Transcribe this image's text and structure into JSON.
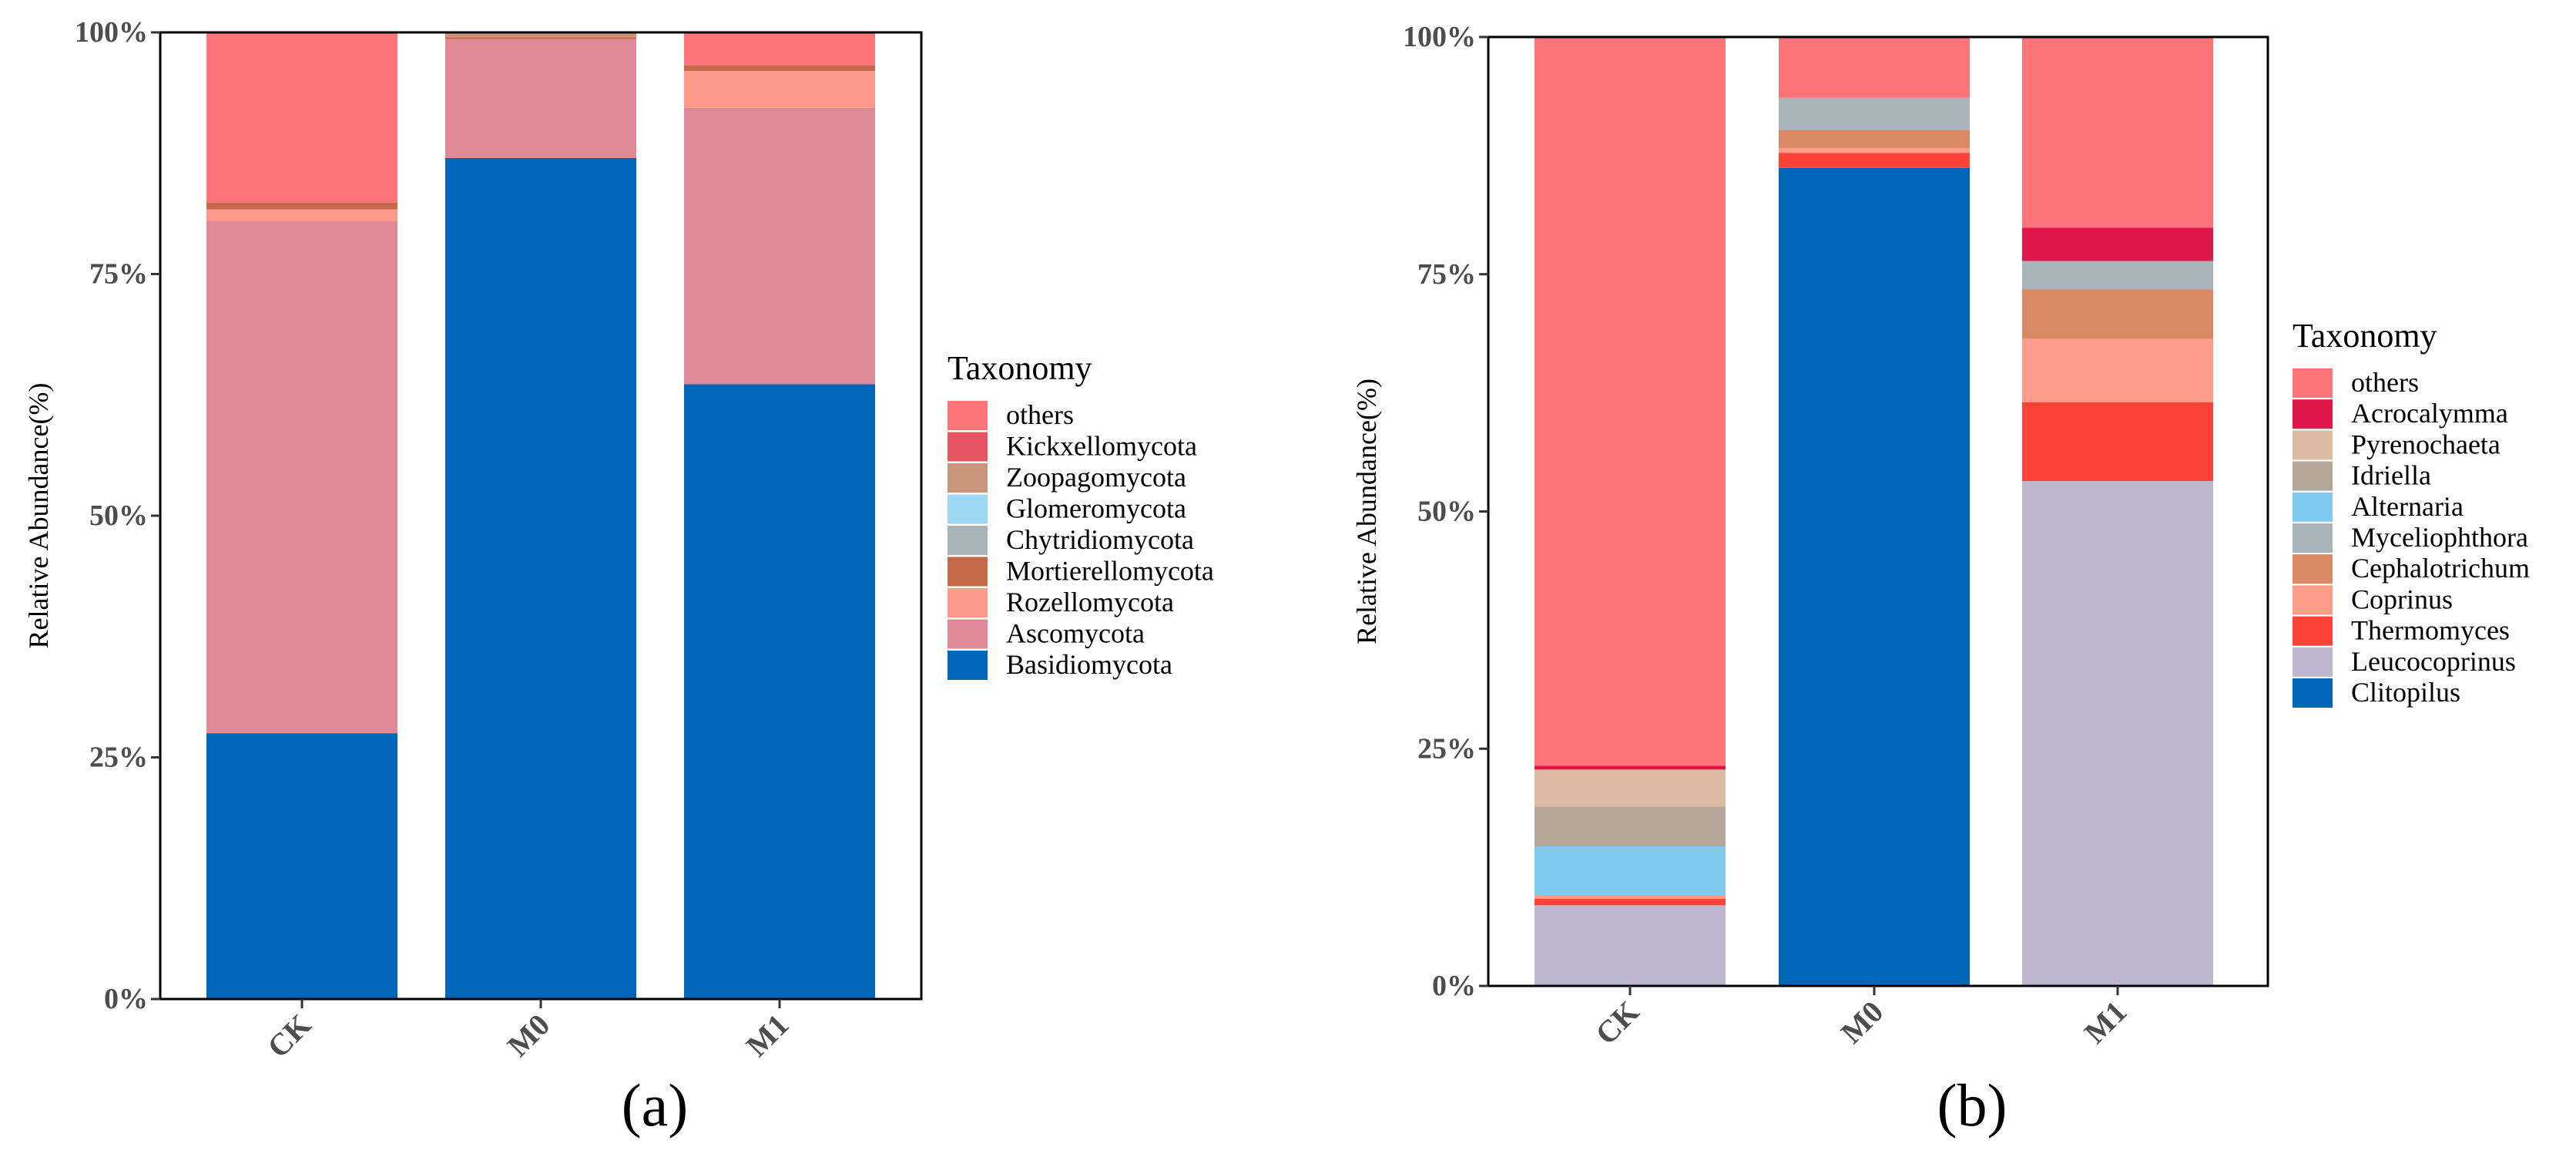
{
  "chart_data": [
    {
      "type": "bar",
      "stacked": true,
      "panel_label": "(a)",
      "ylabel": "Relative Abundance(%)",
      "ylim": [
        0,
        100
      ],
      "yticks": [
        "0%",
        "25%",
        "50%",
        "75%",
        "100%"
      ],
      "categories": [
        "CK",
        "M0",
        "M1"
      ],
      "legend_title": "Taxonomy",
      "series": [
        {
          "name": "Basidiomycota",
          "color": "#0066B8",
          "values": [
            27.5,
            87.0,
            63.6
          ]
        },
        {
          "name": "Ascomycota",
          "color": "#E08A98",
          "values": [
            53.0,
            12.3,
            28.6
          ]
        },
        {
          "name": "Rozellomycota",
          "color": "#FF9A8A",
          "values": [
            1.2,
            0.0,
            3.8
          ]
        },
        {
          "name": "Mortierellomycota",
          "color": "#C5694A",
          "values": [
            0.7,
            0.2,
            0.6
          ]
        },
        {
          "name": "Chytridiomycota",
          "color": "#A9B4BA",
          "values": [
            0.0,
            0.0,
            0.0
          ]
        },
        {
          "name": "Glomeromycota",
          "color": "#9ED8F5",
          "values": [
            0.0,
            0.0,
            0.0
          ]
        },
        {
          "name": "Zoopagomycota",
          "color": "#C9957A",
          "values": [
            0.0,
            0.4,
            0.0
          ]
        },
        {
          "name": "Kickxellomycota",
          "color": "#E85464",
          "values": [
            0.0,
            0.0,
            0.0
          ]
        },
        {
          "name": "others",
          "color": "#FF7478",
          "values": [
            17.6,
            0.1,
            3.4
          ]
        }
      ]
    },
    {
      "type": "bar",
      "stacked": true,
      "panel_label": "(b)",
      "ylabel": "Relative Abundance(%)",
      "ylim": [
        0,
        100
      ],
      "yticks": [
        "0%",
        "25%",
        "50%",
        "75%",
        "100%"
      ],
      "categories": [
        "CK",
        "M0",
        "M1"
      ],
      "legend_title": "Taxonomy",
      "series": [
        {
          "name": "Clitopilus",
          "color": "#0066B8",
          "values": [
            0.0,
            86.2,
            0.0
          ]
        },
        {
          "name": "Leucocoprinus",
          "color": "#BDB7D0",
          "values": [
            8.5,
            0.0,
            53.2
          ]
        },
        {
          "name": "Thermomyces",
          "color": "#FF4238",
          "values": [
            0.7,
            1.6,
            8.3
          ]
        },
        {
          "name": "Coprinus",
          "color": "#FF9C8A",
          "values": [
            0.4,
            0.5,
            6.7
          ]
        },
        {
          "name": "Cephalotrichum",
          "color": "#D98A64",
          "values": [
            0.0,
            1.9,
            5.2
          ]
        },
        {
          "name": "Myceliophthora",
          "color": "#A9B4BA",
          "values": [
            0.0,
            3.4,
            3.0
          ]
        },
        {
          "name": "Alternaria",
          "color": "#7ECAEE",
          "values": [
            5.1,
            0.0,
            0.0
          ]
        },
        {
          "name": "Idriella",
          "color": "#B5A69A",
          "values": [
            4.2,
            0.0,
            0.0
          ]
        },
        {
          "name": "Pyrenochaeta",
          "color": "#DDBBA2",
          "values": [
            3.9,
            0.0,
            0.0
          ]
        },
        {
          "name": "Acrocalymma",
          "color": "#E0174A",
          "values": [
            0.4,
            0.0,
            3.5
          ]
        },
        {
          "name": "others",
          "color": "#FF7478",
          "values": [
            76.8,
            6.4,
            20.1
          ]
        }
      ]
    }
  ]
}
